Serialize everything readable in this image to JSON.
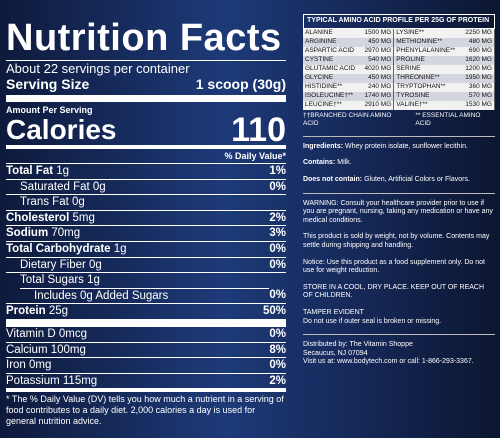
{
  "nutrition_facts": {
    "title": "Nutrition Facts",
    "servings": "About 22 servings per container",
    "serving_size_label": "Serving Size",
    "serving_size": "1 scoop (30g)",
    "amount_per_serving": "Amount Per Serving",
    "calories_label": "Calories",
    "calories": "110",
    "daily_value_header": "% Daily Value*",
    "rows": [
      [
        "Total Fat",
        "1g",
        "1%"
      ],
      [
        "Saturated Fat",
        "0g",
        "0%"
      ],
      [
        "Trans Fat",
        "0g"
      ],
      [
        "Cholesterol",
        "5mg",
        "2%"
      ],
      [
        "Sodium",
        "70mg",
        "3%"
      ],
      [
        "Total Carbohydrate",
        "1g",
        "0%"
      ],
      [
        "Dietary Fiber",
        "0g",
        "0%"
      ],
      [
        "Total Sugars",
        "1g"
      ],
      [
        "Includes 0g Added Sugars",
        "",
        "0%"
      ],
      [
        "Protein",
        "25g",
        "50%"
      ],
      [
        "Vitamin D",
        "0mcg",
        "0%"
      ],
      [
        "Calcium",
        "100mg",
        "8%"
      ],
      [
        "Iron",
        "0mg",
        "0%"
      ],
      [
        "Potassium",
        "115mg",
        "2%"
      ]
    ],
    "footnote": "* The % Daily Value (DV) tells you how much a nutrient in a serving of food contributes to a daily diet. 2,000 calories a day is used for general nutrition advice."
  },
  "amino_profile": {
    "title": "Typical Amino Acid Profile per 25g of Protein",
    "rows": [
      [
        "Alanine",
        "1500 mg",
        "Lysine**",
        "2250 mg"
      ],
      [
        "Arginine",
        "450 mg",
        "Methionine**",
        "480 mg"
      ],
      [
        "Aspartic Acid",
        "2970 mg",
        "Phenylalanine**",
        "690 mg"
      ],
      [
        "Cystine",
        "540 mg",
        "Proline",
        "1620 mg"
      ],
      [
        "Glutamic Acid",
        "4020 mg",
        "Serine",
        "1200 mg"
      ],
      [
        "Glycine",
        "450 mg",
        "Threonine**",
        "1950 mg"
      ],
      [
        "Histidine**",
        "240 mg",
        "Tryptophan**",
        "360 mg"
      ],
      [
        "Isoleucine†**",
        "1740 mg",
        "Tyrosine",
        "570 mg"
      ],
      [
        "Leucine†**",
        "2910 mg",
        "Valine†**",
        "1530 mg"
      ]
    ],
    "legend": [
      "††Branched Chain Amino Acid",
      "** Essential Amino Acid"
    ]
  },
  "label_text": {
    "ingredients": {
      "lead": "Ingredients:",
      "text": "Whey protein isolate, sunflower lecithin."
    },
    "contains": {
      "lead": "Contains:",
      "text": "Milk."
    },
    "does_not_contain": {
      "lead": "Does not contain:",
      "text": "Gluten, Artificial Colors or Flavors."
    },
    "warning": "WARNING: Consult your healthcare provider prior to use if you are pregnant, nursing, taking any medication or have any medical conditions.",
    "weight": "This product is sold by weight, not by volume. Contents may settle during shipping and handling.",
    "notice": "Notice: Use this product as a food supplement only. Do not use for weight reduction.",
    "storage": "STORE IN A COOL, DRY PLACE. KEEP OUT OF REACH OF CHILDREN.",
    "tamper_title": "TAMPER EVIDENT",
    "tamper_text": "Do not use if outer seal is broken or missing.",
    "distributor": [
      "Distributed by: The Vitamin Shoppe",
      "Secaucus, NJ 07094",
      "Visit us at: www.bodytech.com or call: 1-866-293-3367."
    ]
  }
}
